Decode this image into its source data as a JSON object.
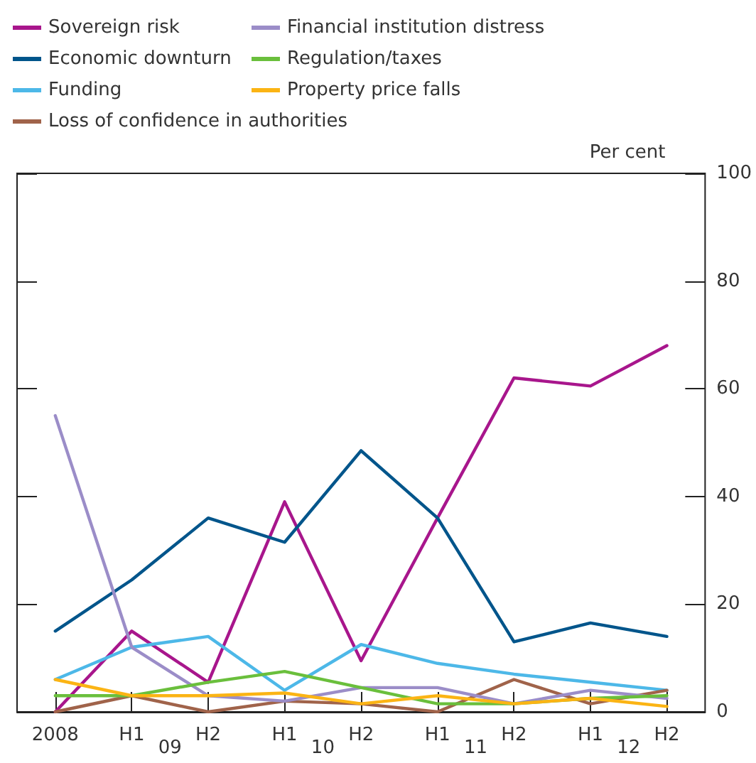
{
  "chart_data": {
    "type": "line",
    "categories": [
      "2008",
      "H1",
      "H2",
      "H1",
      "H2",
      "H1",
      "H2",
      "H1",
      "H2"
    ],
    "annotations": [
      "09",
      "10",
      "11",
      "12"
    ],
    "ylabel": "Per cent",
    "ylim": [
      0,
      100
    ],
    "yticks": [
      0,
      20,
      40,
      60,
      80,
      100
    ],
    "grid": false,
    "legend": "top left",
    "marker": "none",
    "line_style": "solid",
    "series": [
      {
        "name": "Sovereign risk",
        "color": "#a8168c",
        "values": [
          0,
          15,
          5.5,
          39,
          9.5,
          36,
          62,
          60.5,
          68
        ]
      },
      {
        "name": "Economic downturn",
        "color": "#00558b",
        "values": [
          15,
          24.5,
          36,
          31.5,
          48.5,
          36,
          13,
          16.5,
          14
        ]
      },
      {
        "name": "Funding",
        "color": "#4db8e8",
        "values": [
          6,
          12,
          14,
          4,
          12.5,
          9,
          7,
          5.5,
          4
        ]
      },
      {
        "name": "Loss of confidence in authorities",
        "color": "#a0634a",
        "values": [
          0,
          3,
          0,
          2,
          1.5,
          0,
          6,
          1.5,
          4
        ]
      },
      {
        "name": "Financial institution distress",
        "color": "#9b8dc8",
        "values": [
          55,
          12,
          3,
          2,
          4.5,
          4.5,
          1.5,
          4,
          2.5
        ]
      },
      {
        "name": "Regulation/taxes",
        "color": "#6abf3c",
        "values": [
          3,
          3,
          5.5,
          7.5,
          4.5,
          1.5,
          1.5,
          2.5,
          3
        ]
      },
      {
        "name": "Property price falls",
        "color": "#fbb414",
        "values": [
          6,
          3,
          3,
          3.5,
          1.5,
          3,
          1.5,
          2.5,
          1
        ]
      }
    ]
  }
}
